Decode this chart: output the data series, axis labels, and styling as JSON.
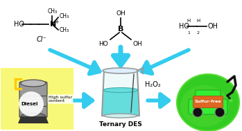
{
  "bg_color": "#ffffff",
  "ac": "#33ccee",
  "title": "Ternary DES",
  "h2o2": "H₂O₂",
  "cl_minus": "Cl⁻",
  "diesel_label": "Diesel",
  "sulfur_label": "High sulfur\ncontent",
  "sulfurfree": "Sulfur-free",
  "beaker_liquid": "#66dddd",
  "beaker_glass": "#999999",
  "yellow": "#f8f878",
  "green1": "#33cc22",
  "green2": "#55dd33",
  "red_car": "#cc3311",
  "orange_tag": "#dd6622",
  "figsize": [
    3.49,
    1.89
  ],
  "dpi": 100
}
